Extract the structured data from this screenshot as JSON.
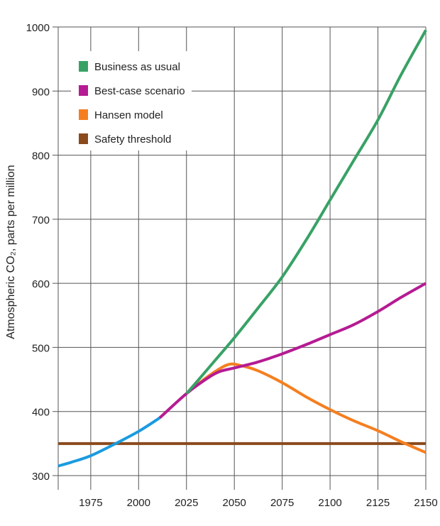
{
  "chart_data": {
    "type": "line",
    "title": "",
    "xlabel": "",
    "ylabel": "Atmospheric CO₂, parts per million",
    "xlim": [
      1958,
      2150
    ],
    "ylim": [
      300,
      1000
    ],
    "grid": true,
    "legend_placement": "top-left",
    "x_ticks": [
      "1975",
      "2000",
      "2025",
      "2050",
      "2075",
      "2100",
      "2125",
      "2150"
    ],
    "y_ticks": [
      "300",
      "400",
      "500",
      "600",
      "700",
      "800",
      "900",
      "1000"
    ],
    "series": [
      {
        "color": "#1a9be0",
        "legend": false,
        "x": [
          1958,
          1965,
          1975,
          1988,
          2000,
          2011
        ],
        "y": [
          315,
          321,
          331,
          350,
          369,
          390
        ]
      },
      {
        "name": "Business as usual",
        "color": "#38a265",
        "legend": true,
        "x": [
          2025,
          2030,
          2040,
          2050,
          2062,
          2075,
          2088,
          2100,
          2112,
          2125,
          2137,
          2150
        ],
        "y": [
          428,
          445,
          480,
          515,
          560,
          610,
          670,
          730,
          790,
          855,
          925,
          995
        ]
      },
      {
        "name": "Best-case scenario",
        "color": "#b51b93",
        "legend": true,
        "x": [
          2011,
          2025,
          2035,
          2042,
          2050,
          2062,
          2075,
          2088,
          2100,
          2112,
          2125,
          2137,
          2150
        ],
        "y": [
          390,
          428,
          450,
          462,
          468,
          477,
          490,
          505,
          520,
          535,
          556,
          578,
          600
        ]
      },
      {
        "name": "Hansen model",
        "color": "#f57f20",
        "legend": true,
        "x": [
          2025,
          2035,
          2043,
          2048,
          2053,
          2062,
          2075,
          2088,
          2100,
          2112,
          2125,
          2137,
          2150
        ],
        "y": [
          428,
          452,
          468,
          474,
          472,
          464,
          445,
          422,
          403,
          386,
          370,
          353,
          336
        ]
      },
      {
        "name": "Safety threshold",
        "color": "#8a4a1c",
        "legend": true,
        "x": [
          1958,
          2150
        ],
        "y": [
          350,
          350
        ]
      }
    ]
  }
}
